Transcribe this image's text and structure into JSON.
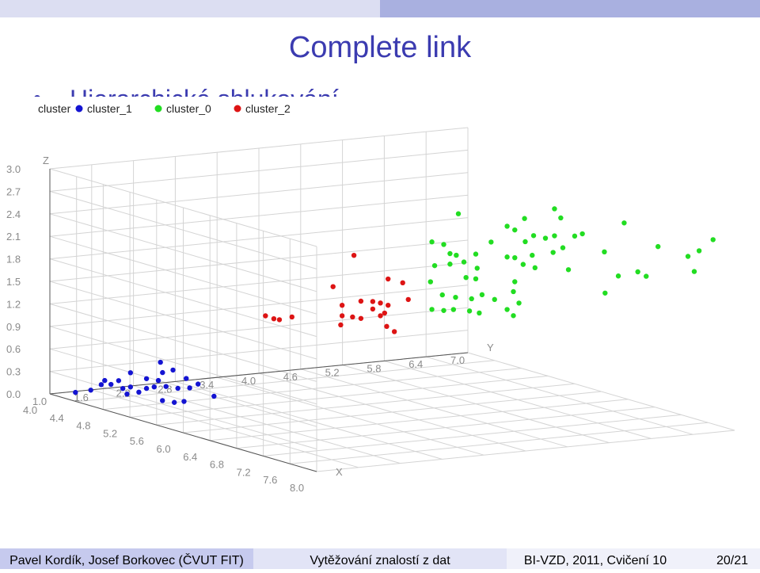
{
  "slide": {
    "title": "Complete link",
    "bullet": "Hierarchické shlukování"
  },
  "footer": {
    "authors": "Pavel Kordík, Josef Borkovec (ČVUT FIT)",
    "course": "Vytěžování znalostí z dat",
    "lecture": "BI-VZD, 2011, Cvičení 10",
    "page": "20/21"
  },
  "chart_data": {
    "type": "scatter3d",
    "legend_title": "cluster",
    "legend": "top-left",
    "grid": true,
    "xlabel": "X",
    "ylabel": "Y",
    "zlabel": "Z",
    "xlim": [
      4.0,
      8.0
    ],
    "ylim": [
      1.0,
      7.0
    ],
    "zlim": [
      0.0,
      3.0
    ],
    "xticks": [
      {
        "value": 4,
        "label": "4.0"
      },
      4.4,
      4.8,
      5.2,
      5.6,
      {
        "value": 6,
        "label": "6.0"
      },
      6.4,
      6.8,
      7.2,
      7.6,
      {
        "value": 8,
        "label": "8.0"
      }
    ],
    "yticks": [
      {
        "value": 1,
        "label": "1.0"
      },
      1.6,
      2.2,
      2.8,
      3.4,
      {
        "value": 4,
        "label": "4.0"
      },
      4.6,
      5.2,
      5.8,
      6.4,
      {
        "value": 7,
        "label": "7.0"
      }
    ],
    "zticks": [
      {
        "value": 0,
        "label": "0.0"
      },
      0.3,
      0.6,
      0.9,
      1.2,
      1.5,
      1.8,
      2.1,
      2.4,
      2.7,
      {
        "value": 3,
        "label": "3.0"
      }
    ],
    "series": [
      {
        "name": "cluster_1",
        "color": "#1414d2",
        "x": [
          4.3,
          4.3,
          4.3,
          4.3,
          4.3,
          4.3,
          4.3,
          4.3,
          4.3,
          4.3,
          4.3,
          4.3,
          4.3,
          4.3,
          4.3,
          4.3,
          4.3,
          4.3,
          4.3,
          4.3,
          4.3,
          4.3,
          4.3,
          4.8,
          4.8,
          4.8,
          4.8
        ],
        "y": [
          1.08,
          1.3,
          1.45,
          1.5,
          1.7,
          1.76,
          1.82,
          1.87,
          1.99,
          2.1,
          2.27,
          2.33,
          2.3,
          2.48,
          2.38,
          2.55,
          2.67,
          2.72,
          2.84,
          1.59,
          2.21,
          1.87,
          2.1,
          2.02,
          2.59,
          1.85,
          2.16
        ],
        "z": [
          0.09,
          0.1,
          0.16,
          0.21,
          0.19,
          0.08,
          0,
          0.09,
          0.01,
          0.05,
          0.14,
          0.24,
          0.38,
          0.26,
          0.05,
          0.01,
          0.13,
          0,
          0.04,
          0.15,
          0.06,
          0.28,
          0.18,
          0,
          0.03,
          0.04,
          0
        ]
      },
      {
        "name": "cluster_0",
        "color": "#22dd22",
        "x": [
          6.5,
          6.5,
          6.5,
          6.5,
          6.5,
          6.5,
          6.5,
          6.5,
          6.5,
          6.5,
          6.5,
          6.5,
          6.5,
          6.5,
          6.5,
          6.5,
          6.5,
          6.5,
          6.5,
          6.5,
          6.5,
          6.5,
          6.5,
          6.5,
          6.5,
          6.5,
          6.5,
          6.5,
          6.5,
          6.5,
          6.5,
          6.5,
          6.5,
          6.5,
          6.5,
          6.5,
          6.5,
          6.5,
          6.5,
          6.5,
          6.5,
          6.5,
          6.5,
          6.5,
          6.5,
          6.5,
          6.5,
          6.5,
          6.5,
          8.0,
          8.0,
          8.0,
          8.0,
          8.0,
          8.0,
          8.0,
          8.0,
          8.0,
          8.0
        ],
        "y": [
          4.47,
          5.42,
          5.85,
          5.94,
          5.17,
          5.28,
          5.55,
          5.85,
          6.25,
          6.85,
          4.09,
          4.26,
          4.94,
          5.43,
          5.72,
          6.14,
          4.35,
          4.44,
          4.72,
          5.17,
          5.28,
          5.53,
          5.83,
          5.97,
          4.13,
          4.35,
          4.55,
          4.74,
          4.58,
          5.4,
          5.57,
          6.05,
          4.07,
          4.72,
          5.28,
          4.24,
          4.43,
          4.66,
          4.81,
          4.99,
          5.26,
          4.09,
          4.26,
          4.4,
          4.63,
          4.77,
          5.17,
          5.34,
          5.26,
          6.69,
          5.9,
          6.49,
          6.33,
          6.42,
          5.61,
          5.73,
          5.33,
          5.14,
          5.13
        ],
        "z": [
          2.73,
          2.58,
          2.67,
          2.54,
          2.5,
          2.44,
          2.34,
          2.31,
          2.3,
          2.39,
          2.39,
          2.34,
          2.31,
          2.27,
          2.29,
          2.28,
          2.21,
          2.18,
          2.17,
          2.09,
          2.07,
          2.08,
          2.09,
          2.14,
          2.07,
          2.07,
          2.08,
          1.98,
          1.87,
          1.97,
          1.91,
          1.84,
          1.86,
          1.84,
          1.75,
          1.67,
          1.62,
          1.58,
          1.62,
          1.54,
          1.62,
          1.49,
          1.46,
          1.46,
          1.42,
          1.38,
          1.39,
          1.46,
          1.3,
          2.57,
          2.55,
          2.44,
          2.38,
          2.17,
          2.24,
          2.17,
          2.21,
          2.0,
          2.55
        ]
      },
      {
        "name": "cluster_2",
        "color": "#dd1414",
        "x": [
          6.0,
          6.0,
          6.0,
          6.0,
          6.0,
          6.0,
          6.0,
          6.0,
          6.0,
          6.0,
          6.0,
          6.0,
          6.0,
          6.0,
          6.0,
          6.0,
          6.0,
          6.0,
          6.0,
          6.0,
          6.0,
          6.0,
          6.0
        ],
        "y": [
          3.45,
          3.94,
          3.15,
          4.15,
          3.55,
          3.72,
          3.83,
          3.94,
          4.23,
          3.28,
          3.72,
          3.89,
          2.18,
          2.3,
          2.38,
          2.56,
          3.28,
          3.43,
          3.55,
          3.83,
          3.26,
          3.92,
          4.03
        ],
        "z": [
          2.14,
          1.78,
          1.75,
          1.71,
          1.52,
          1.5,
          1.47,
          1.43,
          1.48,
          1.49,
          1.4,
          1.33,
          1.45,
          1.4,
          1.38,
          1.4,
          1.35,
          1.32,
          1.29,
          1.3,
          1.23,
          1.15,
          1.07
        ]
      }
    ]
  }
}
